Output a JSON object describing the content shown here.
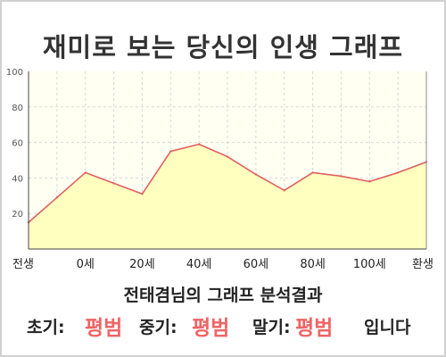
{
  "title": "재미로 보는 당신의 인생 그래프",
  "chart_data": {
    "type": "area",
    "x": [
      "전생",
      "",
      "0세",
      "",
      "20세",
      "",
      "40세",
      "",
      "60세",
      "",
      "80세",
      "",
      "100세",
      "",
      "환생"
    ],
    "series": [
      {
        "values": [
          15,
          29,
          43,
          37,
          31,
          55,
          59,
          52,
          42,
          33,
          43,
          41,
          38,
          43,
          49
        ]
      }
    ],
    "x_tick_labels": [
      "전생",
      "0세",
      "20세",
      "40세",
      "60세",
      "80세",
      "100세",
      "환생"
    ],
    "y_tick_labels": [
      "100",
      "80",
      "60",
      "40",
      "20"
    ],
    "ylim": [
      0,
      100
    ],
    "grid": true,
    "colors": {
      "line": "#e06060",
      "fill": "#ffffc0",
      "grid": "#d8d8d8",
      "plot_bg": "#fffff2"
    }
  },
  "summary": "전태겸님의 그래프 분석결과",
  "verdict": {
    "early_label": "초기:",
    "early_value": "평범",
    "middle_label": "중기:",
    "middle_value": "평범",
    "late_label": "말기:",
    "late_value": "평범",
    "suffix": "입니다"
  }
}
